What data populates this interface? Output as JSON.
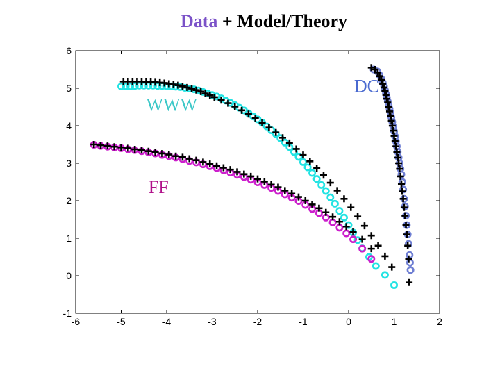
{
  "chart_data": {
    "type": "scatter",
    "title": {
      "highlight": "Data",
      "rest": " + Model/Theory"
    },
    "xlabel": "",
    "ylabel": "",
    "xlim": [
      -6,
      2
    ],
    "ylim": [
      -1,
      6
    ],
    "xticks": [
      "-6",
      "-5",
      "-4",
      "-3",
      "-2",
      "-1",
      "0",
      "1",
      "2"
    ],
    "yticks": [
      "-1",
      "0",
      "1",
      "2",
      "3",
      "4",
      "5",
      "6"
    ],
    "grid": false,
    "annotations": [
      {
        "text": "WWW",
        "x": -4.45,
        "y": 4.4,
        "color": "#3cc8c8"
      },
      {
        "text": "DC",
        "x": 0.12,
        "y": 4.9,
        "color": "#4a6ad0"
      },
      {
        "text": "FF",
        "x": -4.4,
        "y": 2.2,
        "color": "#b0108a"
      }
    ],
    "series": [
      {
        "name": "WWW data",
        "marker": "circle",
        "color": "#22e3e3",
        "x": [
          -5.0,
          -4.9,
          -4.8,
          -4.7,
          -4.6,
          -4.5,
          -4.4,
          -4.3,
          -4.2,
          -4.1,
          -4.0,
          -3.9,
          -3.8,
          -3.7,
          -3.6,
          -3.5,
          -3.4,
          -3.3,
          -3.2,
          -3.1,
          -3.0,
          -2.9,
          -2.8,
          -2.7,
          -2.6,
          -2.5,
          -2.4,
          -2.3,
          -2.2,
          -2.1,
          -2.0,
          -1.9,
          -1.8,
          -1.7,
          -1.6,
          -1.5,
          -1.4,
          -1.3,
          -1.2,
          -1.1,
          -1.0,
          -0.9,
          -0.8,
          -0.7,
          -0.6,
          -0.5,
          -0.4,
          -0.3,
          -0.2,
          -0.1,
          0.0,
          0.1,
          0.2,
          0.3,
          0.45,
          0.6,
          0.8,
          1.0
        ],
        "y": [
          5.05,
          5.05,
          5.05,
          5.06,
          5.07,
          5.07,
          5.07,
          5.07,
          5.06,
          5.06,
          5.05,
          5.05,
          5.04,
          5.03,
          5.01,
          4.99,
          4.97,
          4.94,
          4.9,
          4.86,
          4.82,
          4.78,
          4.73,
          4.67,
          4.61,
          4.55,
          4.48,
          4.41,
          4.33,
          4.25,
          4.17,
          4.08,
          3.98,
          3.88,
          3.78,
          3.67,
          3.55,
          3.43,
          3.3,
          3.17,
          3.03,
          2.89,
          2.74,
          2.58,
          2.42,
          2.26,
          2.09,
          1.92,
          1.73,
          1.55,
          1.35,
          1.15,
          0.95,
          0.73,
          0.5,
          0.26,
          0.02,
          -0.25
        ]
      },
      {
        "name": "FF data",
        "marker": "circle",
        "color": "#cc1fcc",
        "x": [
          -5.6,
          -5.45,
          -5.3,
          -5.15,
          -5.0,
          -4.85,
          -4.7,
          -4.55,
          -4.4,
          -4.25,
          -4.1,
          -3.95,
          -3.8,
          -3.65,
          -3.5,
          -3.35,
          -3.2,
          -3.05,
          -2.9,
          -2.75,
          -2.6,
          -2.45,
          -2.3,
          -2.15,
          -2.0,
          -1.85,
          -1.7,
          -1.55,
          -1.4,
          -1.25,
          -1.1,
          -0.95,
          -0.8,
          -0.65,
          -0.5,
          -0.35,
          -0.2,
          -0.05,
          0.1,
          0.3,
          0.5
        ],
        "y": [
          3.49,
          3.46,
          3.44,
          3.42,
          3.4,
          3.37,
          3.35,
          3.32,
          3.29,
          3.26,
          3.22,
          3.19,
          3.15,
          3.11,
          3.06,
          3.02,
          2.97,
          2.92,
          2.87,
          2.81,
          2.75,
          2.69,
          2.63,
          2.56,
          2.49,
          2.42,
          2.34,
          2.26,
          2.17,
          2.08,
          1.99,
          1.89,
          1.78,
          1.67,
          1.55,
          1.42,
          1.28,
          1.13,
          0.97,
          0.72,
          0.45
        ]
      },
      {
        "name": "DC data",
        "marker": "circle",
        "color": "#6f7fd3",
        "x": [
          0.55,
          0.63,
          0.68,
          0.72,
          0.75,
          0.78,
          0.8,
          0.82,
          0.84,
          0.86,
          0.88,
          0.9,
          0.92,
          0.94,
          0.96,
          0.98,
          1.0,
          1.02,
          1.04,
          1.06,
          1.08,
          1.1,
          1.12,
          1.14,
          1.16,
          1.18,
          1.2,
          1.22,
          1.24,
          1.26,
          1.28,
          1.3,
          1.32,
          1.34,
          1.35,
          1.36
        ],
        "y": [
          5.5,
          5.45,
          5.35,
          5.25,
          5.15,
          5.05,
          4.95,
          4.85,
          4.75,
          4.65,
          4.55,
          4.45,
          4.35,
          4.22,
          4.1,
          3.98,
          3.85,
          3.72,
          3.58,
          3.45,
          3.3,
          3.15,
          3.0,
          2.85,
          2.7,
          2.5,
          2.3,
          2.05,
          1.85,
          1.6,
          1.35,
          1.1,
          0.85,
          0.55,
          0.35,
          0.15
        ]
      },
      {
        "name": "WWW model",
        "marker": "plus",
        "color": "#000000",
        "x": [
          -4.95,
          -4.85,
          -4.75,
          -4.65,
          -4.55,
          -4.45,
          -4.35,
          -4.25,
          -4.15,
          -4.05,
          -3.95,
          -3.85,
          -3.75,
          -3.65,
          -3.55,
          -3.45,
          -3.35,
          -3.25,
          -3.15,
          -3.05,
          -2.95,
          -2.8,
          -2.65,
          -2.5,
          -2.35,
          -2.2,
          -2.05,
          -1.9,
          -1.75,
          -1.6,
          -1.45,
          -1.3,
          -1.15,
          -1.0,
          -0.85,
          -0.7,
          -0.55,
          -0.4,
          -0.25,
          -0.1,
          0.05,
          0.2,
          0.35,
          0.5,
          0.65,
          0.8,
          0.95
        ],
        "y": [
          5.18,
          5.18,
          5.18,
          5.18,
          5.18,
          5.17,
          5.17,
          5.16,
          5.15,
          5.14,
          5.12,
          5.1,
          5.08,
          5.05,
          5.02,
          4.99,
          4.95,
          4.91,
          4.86,
          4.81,
          4.76,
          4.68,
          4.6,
          4.51,
          4.41,
          4.31,
          4.2,
          4.08,
          3.95,
          3.82,
          3.68,
          3.54,
          3.38,
          3.22,
          3.05,
          2.87,
          2.68,
          2.48,
          2.27,
          2.05,
          1.82,
          1.58,
          1.33,
          1.07,
          0.8,
          0.52,
          0.23
        ]
      },
      {
        "name": "FF model",
        "marker": "plus",
        "color": "#000000",
        "x": [
          -5.6,
          -5.45,
          -5.3,
          -5.15,
          -5.0,
          -4.85,
          -4.7,
          -4.55,
          -4.4,
          -4.25,
          -4.1,
          -3.95,
          -3.8,
          -3.65,
          -3.5,
          -3.35,
          -3.2,
          -3.05,
          -2.9,
          -2.75,
          -2.6,
          -2.45,
          -2.3,
          -2.15,
          -2.0,
          -1.85,
          -1.7,
          -1.55,
          -1.4,
          -1.25,
          -1.1,
          -0.95,
          -0.8,
          -0.65,
          -0.5,
          -0.35,
          -0.2,
          -0.05,
          0.1,
          0.3,
          0.5
        ],
        "y": [
          3.5,
          3.48,
          3.46,
          3.44,
          3.42,
          3.4,
          3.37,
          3.35,
          3.32,
          3.29,
          3.26,
          3.23,
          3.19,
          3.16,
          3.12,
          3.08,
          3.03,
          2.98,
          2.93,
          2.88,
          2.83,
          2.77,
          2.71,
          2.65,
          2.58,
          2.51,
          2.43,
          2.36,
          2.27,
          2.19,
          2.1,
          2.0,
          1.9,
          1.8,
          1.69,
          1.57,
          1.44,
          1.31,
          1.17,
          0.97,
          0.72
        ]
      },
      {
        "name": "DC model",
        "marker": "plus",
        "color": "#000000",
        "x": [
          0.5,
          0.58,
          0.64,
          0.68,
          0.72,
          0.75,
          0.78,
          0.8,
          0.82,
          0.84,
          0.86,
          0.88,
          0.9,
          0.92,
          0.94,
          0.96,
          0.98,
          1.0,
          1.02,
          1.04,
          1.06,
          1.08,
          1.1,
          1.12,
          1.14,
          1.16,
          1.18,
          1.2,
          1.22,
          1.24,
          1.26,
          1.28,
          1.3,
          1.32,
          1.33
        ],
        "y": [
          5.55,
          5.5,
          5.42,
          5.32,
          5.22,
          5.12,
          5.02,
          4.92,
          4.82,
          4.72,
          4.62,
          4.5,
          4.38,
          4.26,
          4.13,
          4.0,
          3.87,
          3.73,
          3.59,
          3.45,
          3.3,
          3.15,
          3.0,
          2.85,
          2.65,
          2.45,
          2.25,
          2.05,
          1.82,
          1.6,
          1.35,
          1.1,
          0.8,
          0.45,
          -0.18
        ]
      }
    ]
  }
}
